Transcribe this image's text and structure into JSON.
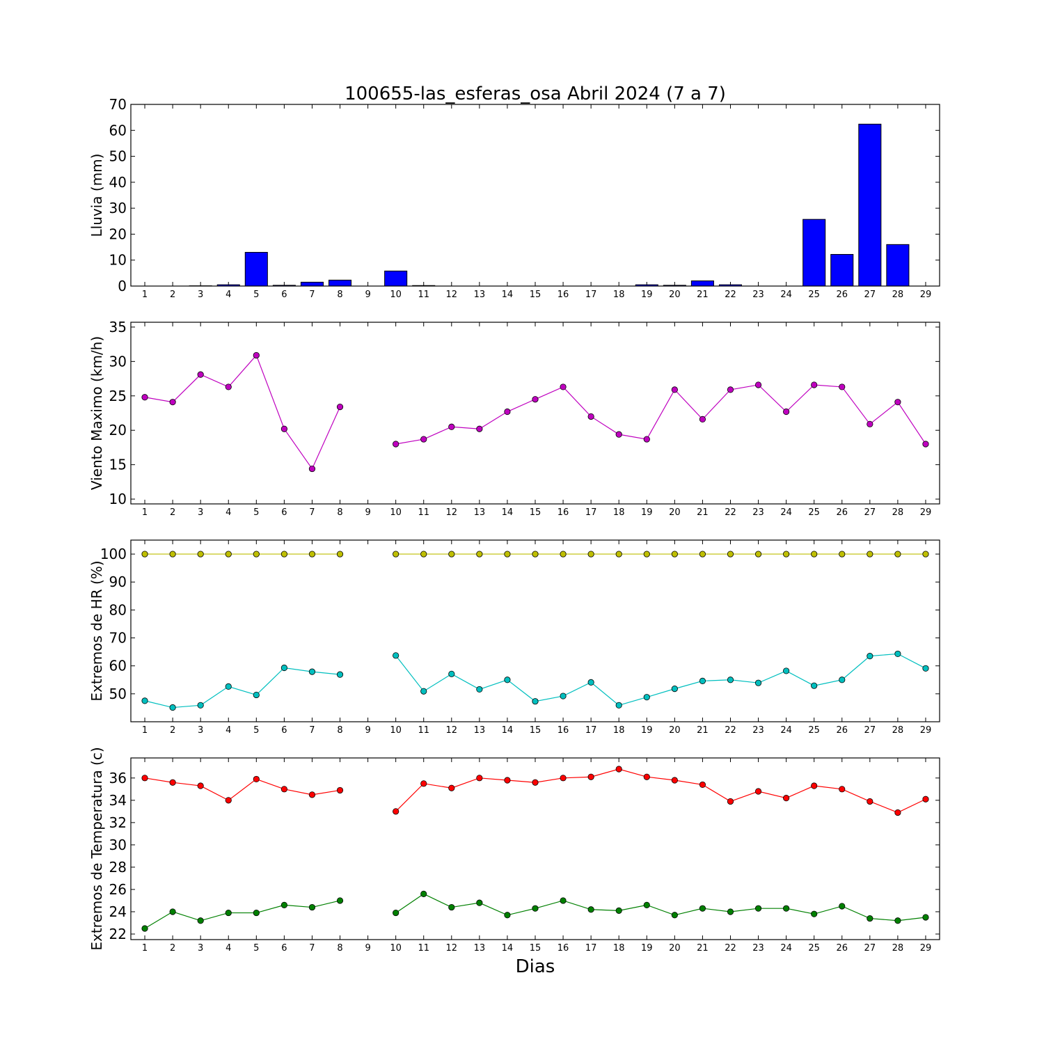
{
  "chart_data": {
    "title": "100655-las_esferas_osa Abril 2024  (7 a 7)",
    "xlabel": "Dias",
    "x": [
      1,
      2,
      3,
      4,
      5,
      6,
      7,
      8,
      9,
      10,
      11,
      12,
      13,
      14,
      15,
      16,
      17,
      18,
      19,
      20,
      21,
      22,
      23,
      24,
      25,
      26,
      27,
      28,
      29
    ],
    "panels": [
      {
        "type": "bar",
        "ylabel": "Lluvia (mm)",
        "ylim": [
          0,
          70
        ],
        "yticks": [
          0,
          10,
          20,
          30,
          40,
          50,
          60,
          70
        ],
        "series": [
          {
            "color": "#0000ff",
            "values": [
              0,
              0,
              0.1,
              0.5,
              13.0,
              0.3,
              1.5,
              2.3,
              null,
              5.8,
              0.2,
              0,
              0,
              0,
              0,
              0,
              0,
              0,
              0.5,
              0.3,
              2.0,
              0.5,
              0,
              0,
              25.7,
              12.2,
              62.4,
              16.0,
              null
            ]
          }
        ]
      },
      {
        "type": "line",
        "ylabel": "Viento Maximo (km/h)",
        "ylim": [
          9.3,
          35.7
        ],
        "yticks": [
          10,
          15,
          20,
          25,
          30,
          35
        ],
        "series": [
          {
            "color": "#bf00bf",
            "values": [
              24.8,
              24.1,
              28.1,
              26.3,
              30.9,
              20.2,
              14.4,
              23.4,
              null,
              18.0,
              18.7,
              20.5,
              20.2,
              22.7,
              24.5,
              26.3,
              22.0,
              19.4,
              18.7,
              25.9,
              21.6,
              25.9,
              26.6,
              22.7,
              26.6,
              26.3,
              20.9,
              24.1,
              18.0
            ]
          }
        ]
      },
      {
        "type": "line",
        "ylabel": "Extremos de HR (%)",
        "ylim": [
          40,
          105
        ],
        "yticks": [
          50,
          60,
          70,
          80,
          90,
          100
        ],
        "series": [
          {
            "color": "#bfbf00",
            "values": [
              100,
              100,
              100,
              100,
              100,
              100,
              100,
              100,
              null,
              100,
              100,
              100,
              100,
              100,
              100,
              100,
              100,
              100,
              100,
              100,
              100,
              100,
              100,
              100,
              100,
              100,
              100,
              100,
              100
            ]
          },
          {
            "color": "#00bfbf",
            "values": [
              47.5,
              45.1,
              45.9,
              52.6,
              49.6,
              59.3,
              57.9,
              56.9,
              null,
              63.7,
              50.9,
              57.1,
              51.6,
              55.0,
              47.3,
              49.2,
              54.1,
              45.9,
              48.8,
              51.8,
              54.6,
              55.0,
              53.9,
              58.2,
              52.9,
              55.0,
              63.5,
              64.3,
              59.1
            ]
          }
        ]
      },
      {
        "type": "line",
        "ylabel": "Extremos de Temperatura (c)",
        "ylim": [
          21.5,
          37.8
        ],
        "yticks": [
          22,
          24,
          26,
          28,
          30,
          32,
          34,
          36
        ],
        "series": [
          {
            "color": "#ff0000",
            "values": [
              36.0,
              35.6,
              35.3,
              34.0,
              35.9,
              35.0,
              34.5,
              34.9,
              null,
              33.0,
              35.5,
              35.1,
              36.0,
              35.8,
              35.6,
              36.0,
              36.1,
              36.8,
              36.1,
              35.8,
              35.4,
              33.9,
              34.8,
              34.2,
              35.3,
              35.0,
              33.9,
              32.9,
              34.1
            ]
          },
          {
            "color": "#008000",
            "values": [
              22.5,
              24.0,
              23.2,
              23.9,
              23.9,
              24.6,
              24.4,
              25.0,
              null,
              23.9,
              25.6,
              24.4,
              24.8,
              23.7,
              24.3,
              25.0,
              24.2,
              24.1,
              24.6,
              23.7,
              24.3,
              24.0,
              24.3,
              24.3,
              23.8,
              24.5,
              23.4,
              23.2,
              23.5
            ]
          }
        ]
      }
    ]
  }
}
